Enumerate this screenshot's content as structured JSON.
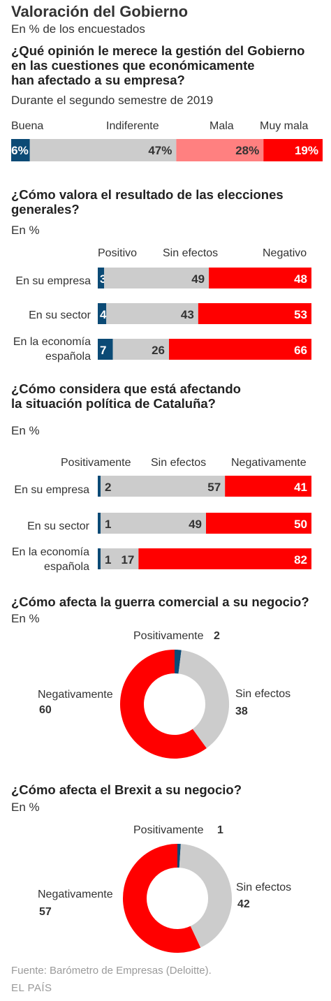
{
  "title": "Valoración del Gobierno",
  "subtitle": "En % de los encuestados",
  "colors": {
    "positive": "#0b4a75",
    "neutral": "#cccccc",
    "negative": "#ff0000",
    "mala": "#ff8080",
    "neutral_text": "#333333",
    "light_text": "#ffffff"
  },
  "chart_data": [
    {
      "type": "bar",
      "orientation": "horizontal-stacked",
      "title": "¿Qué opinión le merece la gestión del Gobierno en las cuestiones que económicamente han afectado a su empresa?",
      "title_lines": [
        "¿Qué opinión le merece la gestión del Gobierno",
        "en las cuestiones que económicamente",
        "han afectado a su empresa?"
      ],
      "subtitle": "Durante el segundo semestre de 2019",
      "categories": [
        ""
      ],
      "series": [
        {
          "name": "Buena",
          "values": [
            6
          ],
          "label": "6%"
        },
        {
          "name": "Indiferente",
          "values": [
            47
          ],
          "label": "47%"
        },
        {
          "name": "Mala",
          "values": [
            28
          ],
          "label": "28%"
        },
        {
          "name": "Muy mala",
          "values": [
            19
          ],
          "label": "19%"
        }
      ]
    },
    {
      "type": "bar",
      "orientation": "horizontal-stacked",
      "title": "¿Cómo valora el resultado de las elecciones generales?",
      "title_lines": [
        "¿Cómo valora el resultado de las elecciones",
        "generales?"
      ],
      "unit": "En %",
      "categories": [
        "En su empresa",
        "En su sector",
        "En la economía española"
      ],
      "category_lines": [
        [
          "En su empresa"
        ],
        [
          "En su sector"
        ],
        [
          "En la economía",
          "española"
        ]
      ],
      "series": [
        {
          "name": "Positivo",
          "values": [
            3,
            4,
            7
          ]
        },
        {
          "name": "Sin efectos",
          "values": [
            49,
            43,
            26
          ]
        },
        {
          "name": "Negativo",
          "values": [
            48,
            53,
            66
          ]
        }
      ]
    },
    {
      "type": "bar",
      "orientation": "horizontal-stacked",
      "title": "¿Cómo considera que está afectando la situación política de Cataluña?",
      "title_lines": [
        "¿Cómo considera que está afectando",
        "la situación política de Cataluña?"
      ],
      "unit": "En %",
      "categories": [
        "En su empresa",
        "En su sector",
        "En la economía española"
      ],
      "category_lines": [
        [
          "En su empresa"
        ],
        [
          "En su sector"
        ],
        [
          "En la economía",
          "española"
        ]
      ],
      "series": [
        {
          "name": "Positivamente",
          "values": [
            0,
            0,
            0
          ]
        },
        {
          "name": "Sin efectos",
          "values": [
            2,
            1,
            1
          ]
        },
        {
          "name": "Sin efectos",
          "values": [
            57,
            49,
            17
          ]
        },
        {
          "name": "Negativamente",
          "values": [
            41,
            50,
            82
          ]
        }
      ]
    },
    {
      "type": "pie",
      "style": "donut",
      "title": "¿Cómo afecta la guerra comercial a su negocio?",
      "unit": "En %",
      "slices": [
        {
          "label": "Positivamente",
          "value": 2
        },
        {
          "label": "Sin efectos",
          "value": 38
        },
        {
          "label": "Negativamente",
          "value": 60
        }
      ]
    },
    {
      "type": "pie",
      "style": "donut",
      "title": "¿Cómo afecta el Brexit a su negocio?",
      "unit": "En %",
      "slices": [
        {
          "label": "Positivamente",
          "value": 1
        },
        {
          "label": "Sin efectos",
          "value": 42
        },
        {
          "label": "Negativamente",
          "value": 57
        }
      ]
    }
  ],
  "footer": {
    "source": "Fuente: Barómetro de Empresas (Deloitte).",
    "brand": "EL PAÍS"
  }
}
